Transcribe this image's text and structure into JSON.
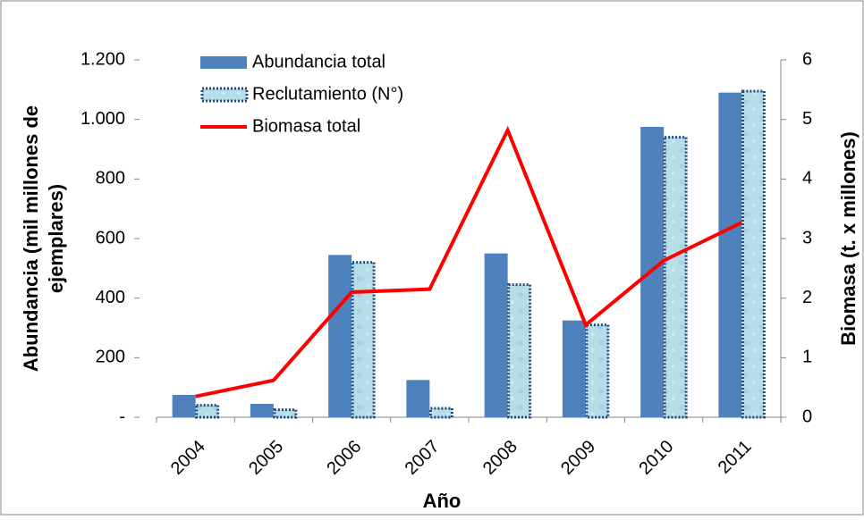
{
  "chart_data": {
    "type": "bar-line",
    "categories": [
      "2004",
      "2005",
      "2006",
      "2007",
      "2008",
      "2009",
      "2010",
      "2011"
    ],
    "xlabel": "Año",
    "ylabel": [
      "Abundancia (mil millones de",
      "ejemplares)"
    ],
    "y2label": "Biomasa (t. x millones)",
    "series": [
      {
        "name": "Abundancia total",
        "type": "bar",
        "color": "#4f81bd",
        "values": [
          75,
          45,
          545,
          125,
          550,
          325,
          975,
          1090
        ]
      },
      {
        "name": "Reclutamiento (N°)",
        "type": "bar",
        "color": "#b7dde8",
        "border": "#1f497d",
        "values": [
          40,
          25,
          520,
          30,
          445,
          310,
          940,
          1095
        ]
      },
      {
        "name": "Biomasa total",
        "type": "line",
        "axis": "y2",
        "color": "#ff0000",
        "values": [
          0.35,
          0.62,
          2.1,
          2.15,
          4.82,
          1.55,
          2.63,
          3.27
        ]
      }
    ],
    "ylim": [
      0,
      1200
    ],
    "yticks": [
      {
        "value": 0,
        "label": "-"
      },
      200,
      400,
      600,
      800,
      {
        "value": 1000,
        "label": "1.000"
      },
      {
        "value": 1200,
        "label": "1.200"
      }
    ],
    "y2lim": [
      0,
      6
    ],
    "y2ticks": [
      0,
      1,
      2,
      3,
      4,
      5,
      6
    ],
    "legend": "upper left"
  }
}
